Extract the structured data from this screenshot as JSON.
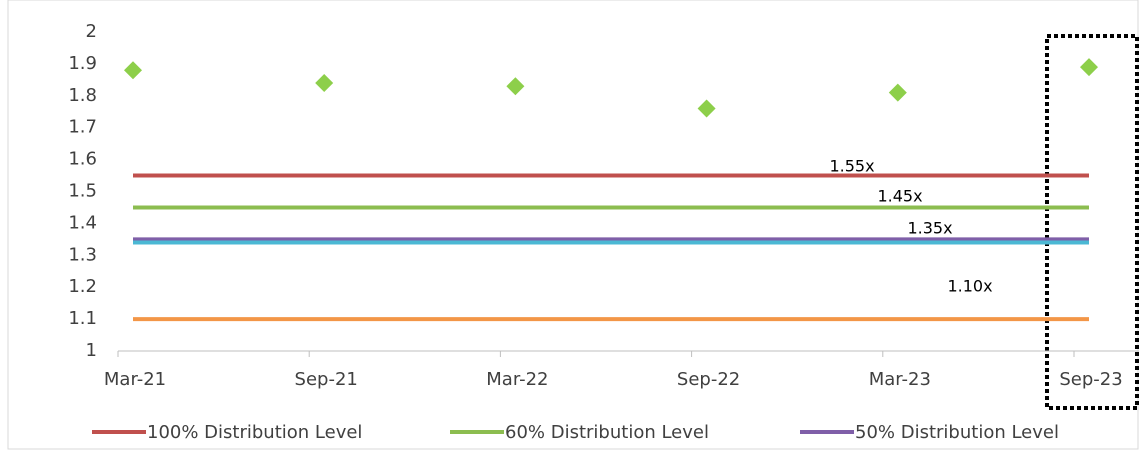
{
  "chart_data": {
    "type": "line",
    "categories": [
      "Mar-21",
      "Sep-21",
      "Mar-22",
      "Sep-22",
      "Mar-23",
      "Sep-23"
    ],
    "series": [
      {
        "name": "100% Distribution Level",
        "color": "#c0504d",
        "values": [
          1.55,
          1.55,
          1.55,
          1.55,
          1.55,
          1.55
        ]
      },
      {
        "name": "60% Distribution Level",
        "color": "#8cbd50",
        "values": [
          1.45,
          1.45,
          1.45,
          1.45,
          1.45,
          1.45
        ]
      },
      {
        "name": "50% Distribution Level",
        "color": "#7f5fa8",
        "values": [
          1.35,
          1.35,
          1.35,
          1.35,
          1.35,
          1.35
        ]
      },
      {
        "color": "#4bb8d4",
        "values": [
          1.34,
          1.34,
          1.34,
          1.34,
          1.34,
          1.34
        ]
      },
      {
        "color": "#f39647",
        "values": [
          1.1,
          1.1,
          1.1,
          1.1,
          1.1,
          1.1
        ]
      },
      {
        "color": "#8dcf4a",
        "marker": "diamond",
        "line": false,
        "values": [
          1.88,
          1.84,
          1.83,
          1.76,
          1.81,
          1.89
        ]
      }
    ],
    "annotations": [
      "1.55x",
      "1.45x",
      "1.35x",
      "1.10x"
    ],
    "ylim": [
      1,
      2
    ],
    "yticks": [
      1,
      {
        "value": 1.1,
        "label": "1.1"
      },
      {
        "value": 1.2,
        "label": "1.2"
      },
      {
        "value": 1.3,
        "label": "1.3"
      },
      {
        "value": 1.4,
        "label": "1.4"
      },
      {
        "value": 1.5,
        "label": "1.5"
      },
      {
        "value": 1.6,
        "label": "1.6"
      },
      {
        "value": 1.7,
        "label": "1.7"
      },
      {
        "value": 1.8,
        "label": "1.8"
      },
      {
        "value": 1.9,
        "label": "1.9"
      },
      2
    ],
    "grid": false
  }
}
